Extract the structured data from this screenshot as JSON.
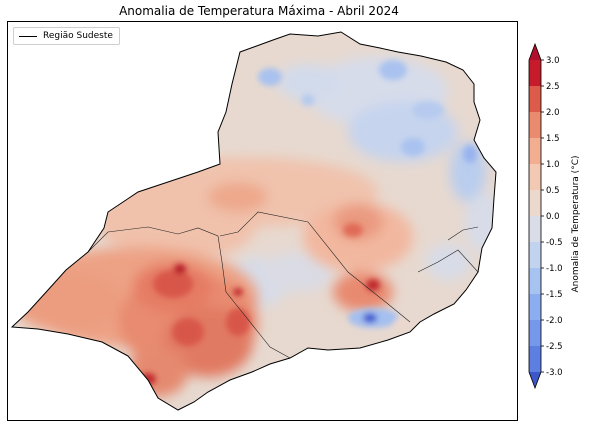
{
  "title": "Anomalia de Temperatura Máxima - Abril 2024",
  "legend": {
    "label": "Região Sudeste"
  },
  "colorbar": {
    "label": "Anomalia de Temperatura (°C)",
    "ticks": [
      "3.0",
      "2.5",
      "2.0",
      "1.5",
      "1.0",
      "0.5",
      "0.0",
      "-0.5",
      "-1.0",
      "-1.5",
      "-2.0",
      "-2.5",
      "-3.0"
    ],
    "colors_top_to_bottom": [
      "#c51b2a",
      "#dc5b4b",
      "#ea8a6f",
      "#f3ae92",
      "#f4c9b4",
      "#ecd8cd",
      "#d8dde7",
      "#c1d3ee",
      "#a6c3f1",
      "#8cadf0",
      "#7698ea",
      "#5c7fe1",
      "#4466d4"
    ],
    "extend_top_color": "#b0102b",
    "extend_bottom_color": "#3d57c8"
  },
  "colors": {
    "neutral": "#e5d8d0",
    "cool": "#b9cdee",
    "cold": "#8aa8ea",
    "warm": "#f0b59b",
    "hot": "#e58a70",
    "very_hot": "#d9614f",
    "extreme": "#c02a2e"
  }
}
